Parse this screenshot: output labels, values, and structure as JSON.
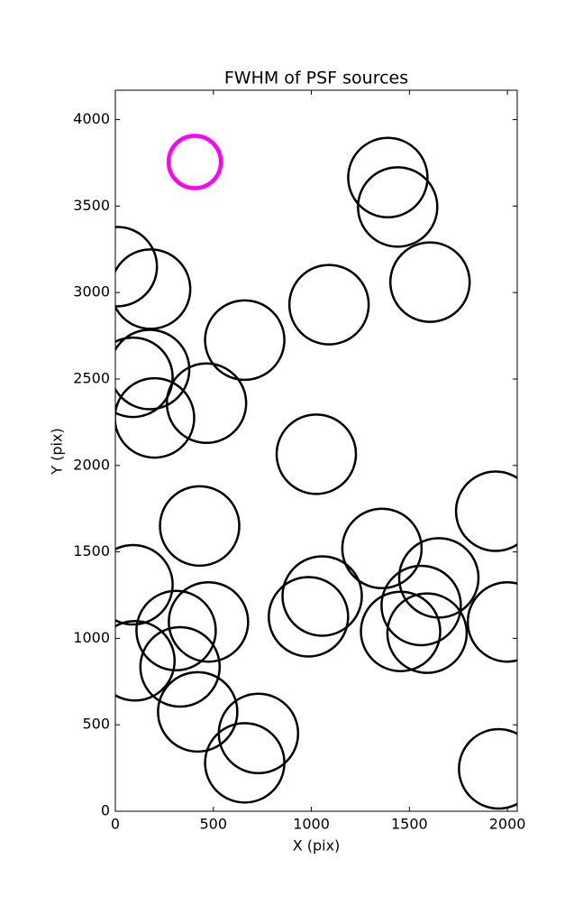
{
  "chart_data": {
    "type": "scatter",
    "title": "FWHM of PSF sources",
    "x_label": "X (pix)",
    "y_label": "Y (pix)",
    "xlim": [
      0,
      2050
    ],
    "ylim": [
      0,
      4170
    ],
    "xticks": [
      0,
      500,
      1000,
      1500,
      2000
    ],
    "yticks": [
      0,
      500,
      1000,
      1500,
      2000,
      2500,
      3000,
      3500,
      4000
    ],
    "series": [
      {
        "color": "#000000",
        "x": [
          10,
          180,
          1390,
          1440,
          1605,
          1090,
          660,
          175,
          90,
          200,
          465,
          1025,
          1940,
          430,
          1360,
          90,
          1650,
          1560,
          1055,
          985,
          2000,
          475,
          310,
          1455,
          1590,
          100,
          330,
          420,
          730,
          660,
          1955
        ],
        "values": [
          3150,
          3020,
          3665,
          3495,
          3060,
          2930,
          2725,
          2555,
          2510,
          2275,
          2360,
          2065,
          1735,
          1650,
          1520,
          1310,
          1350,
          1190,
          1245,
          1125,
          1095,
          1095,
          1045,
          1040,
          1030,
          870,
          835,
          575,
          450,
          280,
          245
        ]
      },
      {
        "color": "#ff00ff",
        "x": [
          405
        ],
        "values": [
          3755
        ]
      }
    ]
  }
}
